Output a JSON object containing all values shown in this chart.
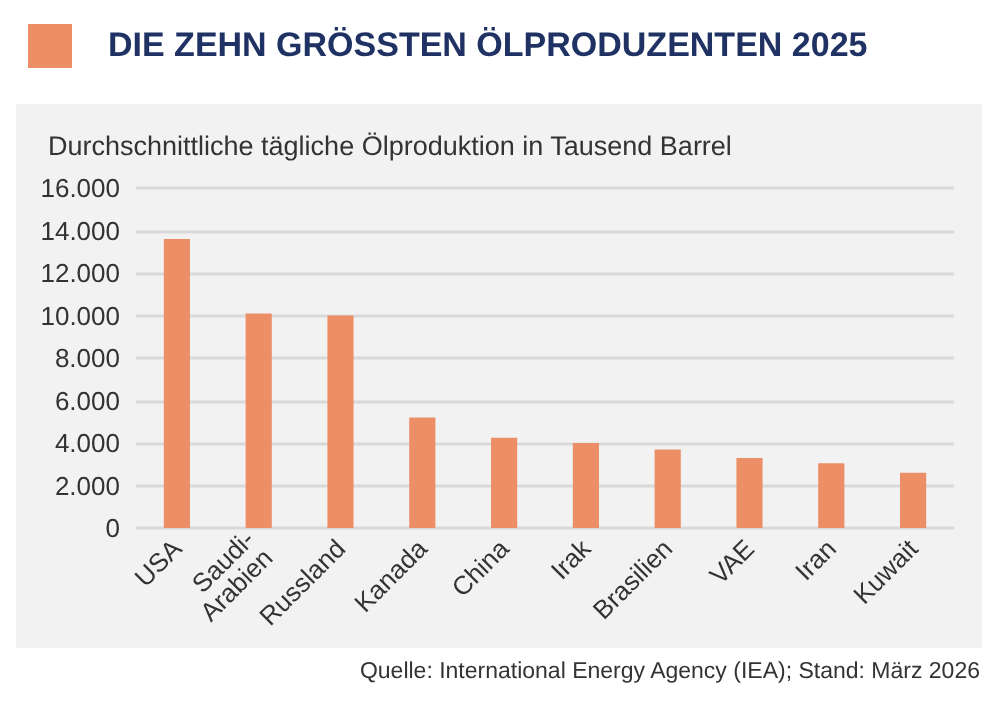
{
  "chart_data": {
    "type": "bar",
    "title": "DIE ZEHN GRÖSSTEN ÖLPRODUZENTEN 2025",
    "ylabel": "Durchschnittliche tägliche Ölproduktion in Tausend Barrel",
    "categories": [
      "USA",
      "Saudi-\nArabien",
      "Russland",
      "Kanada",
      "China",
      "Irak",
      "Brasilien",
      "VAE",
      "Iran",
      "Kuwait"
    ],
    "values": [
      13600,
      10100,
      10000,
      5200,
      4250,
      4000,
      3700,
      3300,
      3050,
      2600
    ],
    "color": "#ec8f66",
    "ylim": [
      0,
      16000
    ],
    "yticks": [
      0,
      {
        "value": 2000,
        "label": "2.000"
      },
      {
        "value": 4000,
        "label": "4.000"
      },
      {
        "value": 6000,
        "label": "6.000"
      },
      {
        "value": 8000,
        "label": "8.000"
      },
      {
        "value": 10000,
        "label": "10.000"
      },
      {
        "value": 12000,
        "label": "12.000"
      },
      {
        "value": 14000,
        "label": "14.000"
      },
      {
        "value": 16000,
        "label": "16.000"
      }
    ],
    "grid": true,
    "annotations": [
      "Quelle: International Energy Agency (IEA); Stand: März 2026"
    ]
  }
}
